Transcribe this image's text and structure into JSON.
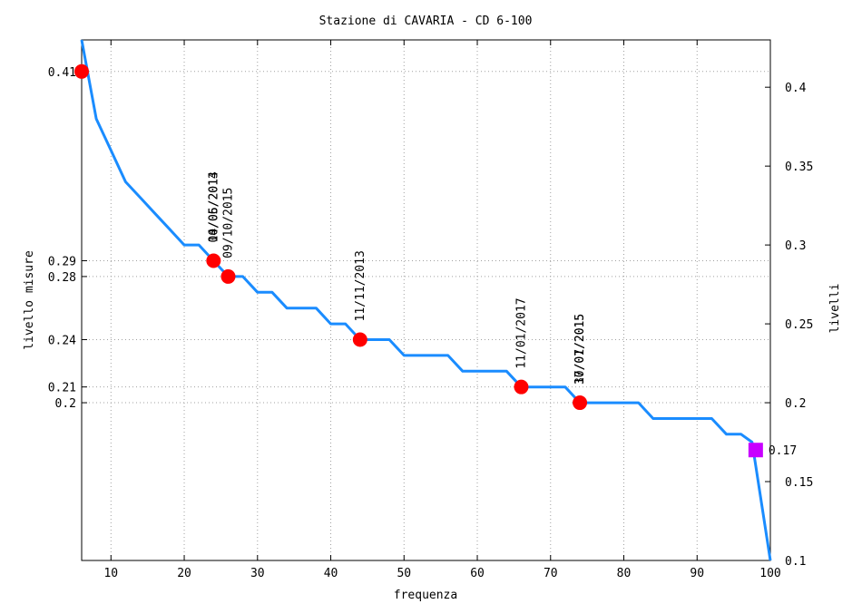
{
  "chart_data": {
    "type": "line",
    "title": "Stazione di CAVARIA - CD 6-100",
    "xlabel": "frequenza",
    "ylabel_left": "livello misure",
    "ylabel_right": "livelli",
    "xlim": [
      6,
      100
    ],
    "ylim": [
      0.1,
      0.43
    ],
    "grid": true,
    "x_ticks": [
      10,
      20,
      30,
      40,
      50,
      60,
      70,
      80,
      90,
      100
    ],
    "right_y_ticks": [
      0.1,
      0.15,
      0.2,
      0.25,
      0.3,
      0.35,
      0.4
    ],
    "left_y_ticks": [
      0.41,
      0.29,
      0.28,
      0.24,
      0.21,
      0.2
    ],
    "series": [
      {
        "color": "#1a8cff",
        "x": [
          6,
          8,
          10,
          12,
          14,
          16,
          18,
          20,
          22,
          24,
          26,
          28,
          30,
          32,
          34,
          36,
          38,
          40,
          42,
          44,
          46,
          48,
          50,
          52,
          54,
          56,
          58,
          60,
          62,
          64,
          66,
          68,
          70,
          72,
          74,
          76,
          78,
          80,
          82,
          84,
          86,
          88,
          90,
          92,
          94,
          96,
          97.5,
          98,
          100
        ],
        "y": [
          0.43,
          0.38,
          0.36,
          0.34,
          0.33,
          0.32,
          0.31,
          0.3,
          0.3,
          0.29,
          0.28,
          0.28,
          0.27,
          0.27,
          0.26,
          0.26,
          0.26,
          0.25,
          0.25,
          0.24,
          0.24,
          0.24,
          0.23,
          0.23,
          0.23,
          0.23,
          0.22,
          0.22,
          0.22,
          0.22,
          0.21,
          0.21,
          0.21,
          0.21,
          0.2,
          0.2,
          0.2,
          0.2,
          0.2,
          0.19,
          0.19,
          0.19,
          0.19,
          0.19,
          0.18,
          0.18,
          0.175,
          0.16,
          0.1
        ]
      }
    ],
    "measurements": {
      "color": "#ff0000",
      "points": [
        {
          "x": 6,
          "y": 0.41
        },
        {
          "x": 24,
          "y": 0.29
        },
        {
          "x": 26,
          "y": 0.28
        },
        {
          "x": 44,
          "y": 0.24
        },
        {
          "x": 66,
          "y": 0.21
        },
        {
          "x": 74,
          "y": 0.2
        }
      ]
    },
    "date_labels": [
      {
        "x": 24,
        "text": "04/06/2014"
      },
      {
        "x": 24,
        "text": "10/05/2013"
      },
      {
        "x": 26,
        "text": "09/10/2015"
      },
      {
        "x": 44,
        "text": "11/11/2013"
      },
      {
        "x": 66,
        "text": "11/01/2017"
      },
      {
        "x": 74,
        "text": "17/07/2015"
      },
      {
        "x": 74,
        "text": "30/01/2015"
      }
    ],
    "current": {
      "x": 98,
      "y": 0.17,
      "label": "0.17",
      "color": "#c800ff"
    }
  }
}
